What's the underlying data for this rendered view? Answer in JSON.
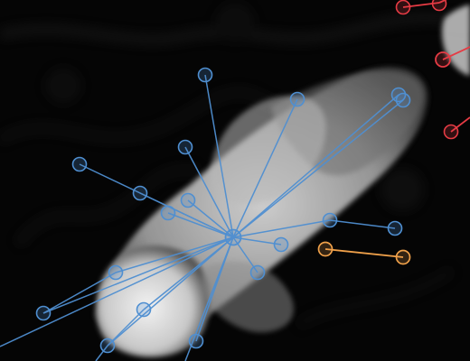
{
  "scene": {
    "description_visible_text": ""
  },
  "colors": {
    "background": "#050505",
    "primary_skeleton": "#4f8fd1",
    "secondary_skeleton": "#f0a14a",
    "other_animal": "#e53b44"
  },
  "skeletons": [
    {
      "name": "blue-skeleton",
      "color": "#4f8fd1",
      "center": "hub",
      "nodes": [
        "hub",
        "n1",
        "n2",
        "n3",
        "n4",
        "n5",
        "n6",
        "n7",
        "n8",
        "n9",
        "n10",
        "n11",
        "n12",
        "n13",
        "n14",
        "n15",
        "n16",
        "n17",
        "n18"
      ],
      "edges": [
        [
          "hub",
          "n1"
        ],
        [
          "hub",
          "n2"
        ],
        [
          "hub",
          "n3"
        ],
        [
          "hub",
          "n4"
        ],
        [
          "hub",
          "n5"
        ],
        [
          "hub",
          "n6"
        ],
        [
          "hub",
          "n7"
        ],
        [
          "hub",
          "n8"
        ],
        [
          "hub",
          "n9"
        ],
        [
          "hub",
          "n10"
        ],
        [
          "hub",
          "n11"
        ],
        [
          "hub",
          "n12"
        ],
        [
          "n2",
          "n13"
        ],
        [
          "n4",
          "n14"
        ],
        [
          "n5",
          "n15"
        ],
        [
          "n6",
          "n16"
        ],
        [
          "n12",
          "n17"
        ],
        [
          "n9",
          "n18"
        ]
      ]
    },
    {
      "name": "orange-skeleton",
      "color": "#f0a14a",
      "nodes": [
        "o1",
        "o2"
      ],
      "edges": [
        [
          "o1",
          "o2"
        ]
      ]
    },
    {
      "name": "red-skeleton",
      "color": "#e53b44",
      "nodes": [
        "r1",
        "r2",
        "r3",
        "r4"
      ],
      "edges": [
        [
          "r1",
          "r2"
        ],
        [
          "r3",
          "r4"
        ]
      ]
    }
  ]
}
